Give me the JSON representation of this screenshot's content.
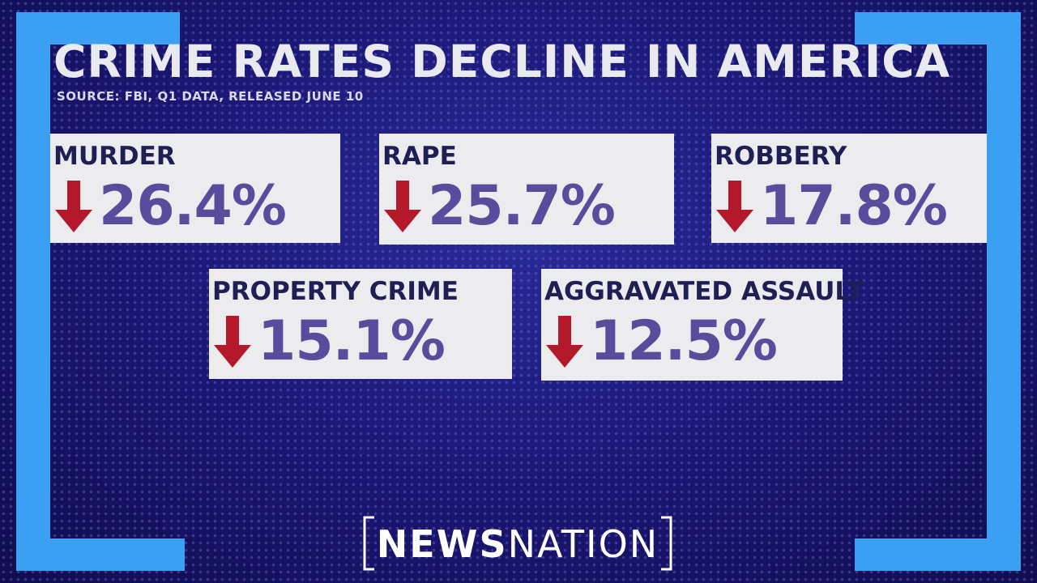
{
  "header": {
    "title": "CRIME RATES DECLINE IN AMERICA",
    "source": "SOURCE: FBI, Q1 DATA, RELEASED JUNE 10"
  },
  "cards": [
    {
      "label": "MURDER",
      "value": "26.4%"
    },
    {
      "label": "RAPE",
      "value": "25.7%"
    },
    {
      "label": "ROBBERY",
      "value": "17.8%"
    },
    {
      "label": "PROPERTY CRIME",
      "value": "15.1%"
    },
    {
      "label": "AGGRAVATED ASSAULT",
      "value": "12.5%"
    }
  ],
  "logo": {
    "bold": "NEWS",
    "regular": "NATION"
  }
}
